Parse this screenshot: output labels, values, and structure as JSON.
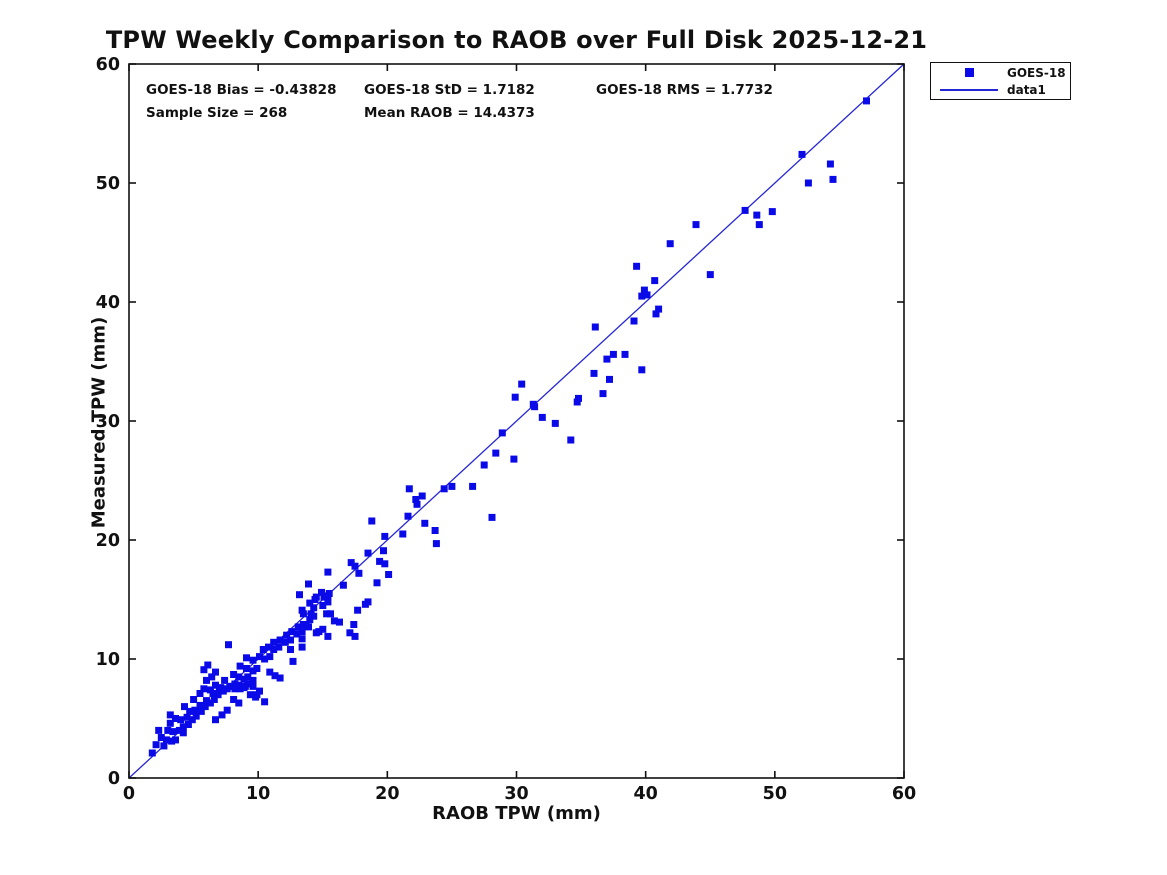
{
  "page": {
    "title": "TPW Weekly Comparison to RAOB over Full Disk 2025-12-21"
  },
  "chart_data": {
    "type": "scatter",
    "title": "TPW Weekly Comparison to RAOB over Full Disk 2025-12-21",
    "xlabel": "RAOB TPW (mm)",
    "ylabel": "Measured TPW (mm)",
    "xlim": [
      0,
      60
    ],
    "ylim": [
      0,
      60
    ],
    "xticks": [
      0,
      10,
      20,
      30,
      40,
      50,
      60
    ],
    "yticks": [
      0,
      10,
      20,
      30,
      40,
      50,
      60
    ],
    "grid": false,
    "axis_color": "#111111",
    "annotations": [
      "GOES-18 Bias = -0.43828",
      "GOES-18 StD = 1.7182",
      "GOES-18 RMS = 1.7732",
      "Sample Size = 268",
      "Mean RAOB = 14.4373"
    ],
    "legend": {
      "position": "outside-top-right",
      "entries": [
        {
          "label": "GOES-18",
          "type": "marker",
          "color": "#0a0ae8"
        },
        {
          "label": "data1",
          "type": "line",
          "color": "#2626d6"
        }
      ]
    },
    "series": [
      {
        "name": "GOES-18",
        "type": "scatter",
        "marker": "square",
        "marker_size_px": 7,
        "color": "#0a0ae8",
        "points": [
          [
            57.1,
            56.9
          ],
          [
            52.1,
            52.4
          ],
          [
            54.3,
            51.6
          ],
          [
            54.5,
            50.3
          ],
          [
            52.6,
            50.0
          ],
          [
            47.7,
            47.7
          ],
          [
            48.6,
            47.3
          ],
          [
            49.8,
            47.6
          ],
          [
            48.8,
            46.5
          ],
          [
            43.9,
            46.5
          ],
          [
            45.0,
            42.3
          ],
          [
            41.9,
            44.9
          ],
          [
            39.3,
            43.0
          ],
          [
            40.7,
            41.8
          ],
          [
            39.9,
            41.0
          ],
          [
            40.1,
            40.6
          ],
          [
            39.7,
            40.5
          ],
          [
            41.0,
            39.4
          ],
          [
            40.8,
            39.0
          ],
          [
            39.1,
            38.4
          ],
          [
            36.1,
            37.9
          ],
          [
            37.0,
            35.2
          ],
          [
            37.5,
            35.6
          ],
          [
            38.4,
            35.6
          ],
          [
            36.0,
            34.0
          ],
          [
            39.7,
            34.3
          ],
          [
            37.2,
            33.5
          ],
          [
            36.7,
            32.3
          ],
          [
            34.8,
            31.9
          ],
          [
            30.4,
            33.1
          ],
          [
            29.9,
            32.0
          ],
          [
            31.3,
            31.4
          ],
          [
            31.4,
            31.2
          ],
          [
            32.0,
            30.3
          ],
          [
            33.0,
            29.8
          ],
          [
            34.7,
            31.6
          ],
          [
            34.2,
            28.4
          ],
          [
            28.9,
            29.0
          ],
          [
            28.4,
            27.3
          ],
          [
            29.8,
            26.8
          ],
          [
            27.5,
            26.3
          ],
          [
            25.0,
            24.5
          ],
          [
            24.4,
            24.3
          ],
          [
            26.6,
            24.5
          ],
          [
            28.1,
            21.9
          ],
          [
            21.7,
            24.3
          ],
          [
            22.7,
            23.7
          ],
          [
            22.2,
            23.4
          ],
          [
            22.3,
            23.0
          ],
          [
            21.6,
            22.0
          ],
          [
            18.8,
            21.6
          ],
          [
            22.9,
            21.4
          ],
          [
            23.7,
            20.8
          ],
          [
            21.2,
            20.5
          ],
          [
            19.8,
            20.3
          ],
          [
            23.8,
            19.7
          ],
          [
            19.7,
            19.1
          ],
          [
            18.5,
            18.9
          ],
          [
            19.4,
            18.2
          ],
          [
            19.8,
            18.0
          ],
          [
            17.2,
            18.1
          ],
          [
            17.5,
            17.8
          ],
          [
            17.8,
            17.2
          ],
          [
            20.1,
            17.1
          ],
          [
            15.4,
            17.3
          ],
          [
            13.9,
            16.3
          ],
          [
            16.6,
            16.2
          ],
          [
            19.2,
            16.4
          ],
          [
            13.2,
            15.4
          ],
          [
            14.5,
            15.2
          ],
          [
            15.1,
            15.2
          ],
          [
            14.9,
            15.6
          ],
          [
            14.4,
            15.0
          ],
          [
            15.4,
            15.3
          ],
          [
            18.3,
            14.6
          ],
          [
            17.7,
            14.1
          ],
          [
            18.5,
            14.8
          ],
          [
            14.1,
            13.8
          ],
          [
            15.6,
            13.8
          ],
          [
            15.9,
            13.2
          ],
          [
            16.3,
            13.1
          ],
          [
            17.4,
            12.9
          ],
          [
            17.1,
            12.2
          ],
          [
            17.5,
            11.9
          ],
          [
            14.0,
            14.7
          ],
          [
            13.5,
            13.8
          ],
          [
            13.4,
            11.7
          ],
          [
            13.4,
            11.0
          ],
          [
            14.5,
            12.2
          ],
          [
            13.7,
            12.8
          ],
          [
            7.7,
            11.2
          ],
          [
            4.3,
            6.0
          ],
          [
            5.0,
            6.6
          ],
          [
            5.5,
            7.1
          ],
          [
            5.8,
            7.5
          ],
          [
            6.3,
            7.4
          ],
          [
            6.7,
            7.8
          ],
          [
            7.1,
            7.6
          ],
          [
            7.4,
            8.2
          ],
          [
            6.4,
            8.5
          ],
          [
            6.0,
            8.2
          ],
          [
            6.7,
            8.9
          ],
          [
            5.8,
            9.1
          ],
          [
            6.1,
            9.5
          ],
          [
            7.8,
            7.7
          ],
          [
            8.2,
            7.9
          ],
          [
            8.6,
            7.5
          ],
          [
            9.0,
            7.7
          ],
          [
            8.1,
            8.7
          ],
          [
            8.5,
            8.5
          ],
          [
            8.9,
            8.3
          ],
          [
            9.2,
            8.5
          ],
          [
            9.6,
            8.2
          ],
          [
            9.4,
            7.0
          ],
          [
            9.8,
            6.8
          ],
          [
            8.6,
            9.4
          ],
          [
            9.1,
            9.2
          ],
          [
            9.6,
            9.0
          ],
          [
            9.9,
            9.2
          ],
          [
            9.6,
            9.9
          ],
          [
            9.1,
            10.1
          ],
          [
            10.1,
            10.2
          ],
          [
            10.5,
            10.0
          ],
          [
            10.9,
            10.2
          ],
          [
            10.4,
            10.8
          ],
          [
            10.8,
            11.0
          ],
          [
            11.2,
            10.8
          ],
          [
            11.6,
            11.0
          ],
          [
            11.2,
            11.4
          ],
          [
            11.7,
            11.6
          ],
          [
            12.1,
            11.4
          ],
          [
            12.5,
            11.6
          ],
          [
            12.2,
            12.0
          ],
          [
            12.6,
            12.3
          ],
          [
            13.0,
            12.1
          ],
          [
            13.4,
            12.3
          ],
          [
            13.1,
            12.7
          ],
          [
            13.5,
            12.9
          ],
          [
            13.9,
            12.7
          ],
          [
            14.0,
            13.3
          ],
          [
            14.3,
            13.6
          ],
          [
            14.7,
            12.3
          ],
          [
            15.0,
            12.5
          ],
          [
            12.7,
            9.8
          ],
          [
            10.9,
            8.9
          ],
          [
            11.3,
            8.6
          ],
          [
            11.7,
            8.4
          ],
          [
            12.5,
            10.8
          ],
          [
            15.3,
            13.8
          ],
          [
            15.4,
            11.9
          ],
          [
            10.5,
            6.4
          ],
          [
            13.4,
            14.1
          ],
          [
            14.3,
            14.3
          ],
          [
            15.0,
            14.5
          ],
          [
            15.4,
            14.8
          ],
          [
            15.5,
            15.5
          ],
          [
            1.8,
            2.1
          ],
          [
            2.1,
            2.8
          ],
          [
            2.7,
            2.7
          ],
          [
            2.5,
            3.4
          ],
          [
            2.9,
            3.2
          ],
          [
            3.3,
            3.1
          ],
          [
            3.6,
            3.2
          ],
          [
            2.3,
            4.0
          ],
          [
            3.0,
            4.0
          ],
          [
            3.2,
            4.6
          ],
          [
            3.4,
            3.9
          ],
          [
            3.9,
            4.0
          ],
          [
            4.2,
            3.8
          ],
          [
            4.2,
            4.3
          ],
          [
            4.6,
            4.5
          ],
          [
            3.6,
            5.0
          ],
          [
            4.0,
            4.9
          ],
          [
            4.5,
            5.1
          ],
          [
            4.9,
            4.9
          ],
          [
            5.2,
            5.2
          ],
          [
            4.7,
            5.6
          ],
          [
            5.1,
            5.7
          ],
          [
            5.6,
            5.6
          ],
          [
            5.5,
            6.1
          ],
          [
            5.9,
            6.0
          ],
          [
            6.0,
            6.5
          ],
          [
            6.3,
            6.3
          ],
          [
            6.6,
            6.6
          ],
          [
            6.5,
            7.1
          ],
          [
            6.9,
            7.0
          ],
          [
            7.0,
            7.5
          ],
          [
            7.3,
            7.3
          ],
          [
            7.6,
            7.5
          ],
          [
            8.0,
            7.7
          ],
          [
            8.2,
            7.5
          ],
          [
            8.5,
            7.8
          ],
          [
            8.9,
            7.6
          ],
          [
            9.2,
            7.9
          ],
          [
            9.6,
            7.7
          ],
          [
            8.1,
            6.6
          ],
          [
            8.5,
            6.3
          ],
          [
            7.2,
            5.3
          ],
          [
            6.7,
            4.9
          ],
          [
            7.6,
            5.7
          ],
          [
            9.9,
            7.0
          ],
          [
            10.1,
            7.3
          ],
          [
            3.2,
            5.3
          ]
        ]
      },
      {
        "name": "data1",
        "type": "line",
        "color": "#2626d6",
        "x": [
          0,
          60
        ],
        "y": [
          0,
          60
        ]
      }
    ]
  }
}
